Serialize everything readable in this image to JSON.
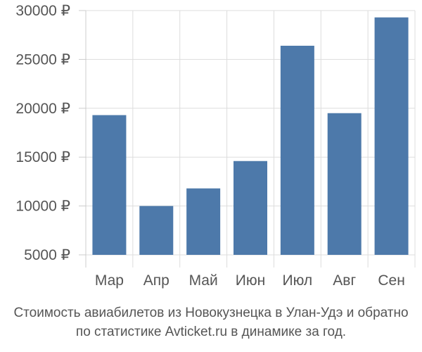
{
  "chart_data": {
    "type": "bar",
    "categories": [
      "Мар",
      "Апр",
      "Май",
      "Июн",
      "Июл",
      "Авг",
      "Сен"
    ],
    "values": [
      19300,
      10000,
      11800,
      14600,
      26400,
      19500,
      29300
    ],
    "ylim": [
      5000,
      30000
    ],
    "y_ticks": [
      5000,
      10000,
      15000,
      20000,
      25000,
      30000
    ],
    "y_tick_labels": [
      "5000 ₽",
      "10000 ₽",
      "15000 ₽",
      "20000 ₽",
      "25000 ₽",
      "30000 ₽"
    ],
    "grid": true,
    "bar_color": "#4d79aa",
    "grid_color": "#dddddd",
    "axis_color": "#cccccc"
  },
  "caption": {
    "line1": "Стоимость авиабилетов из Новокузнецка в Улан-Удэ и обратно",
    "line2": "по статистике Avticket.ru в динамике за год."
  }
}
